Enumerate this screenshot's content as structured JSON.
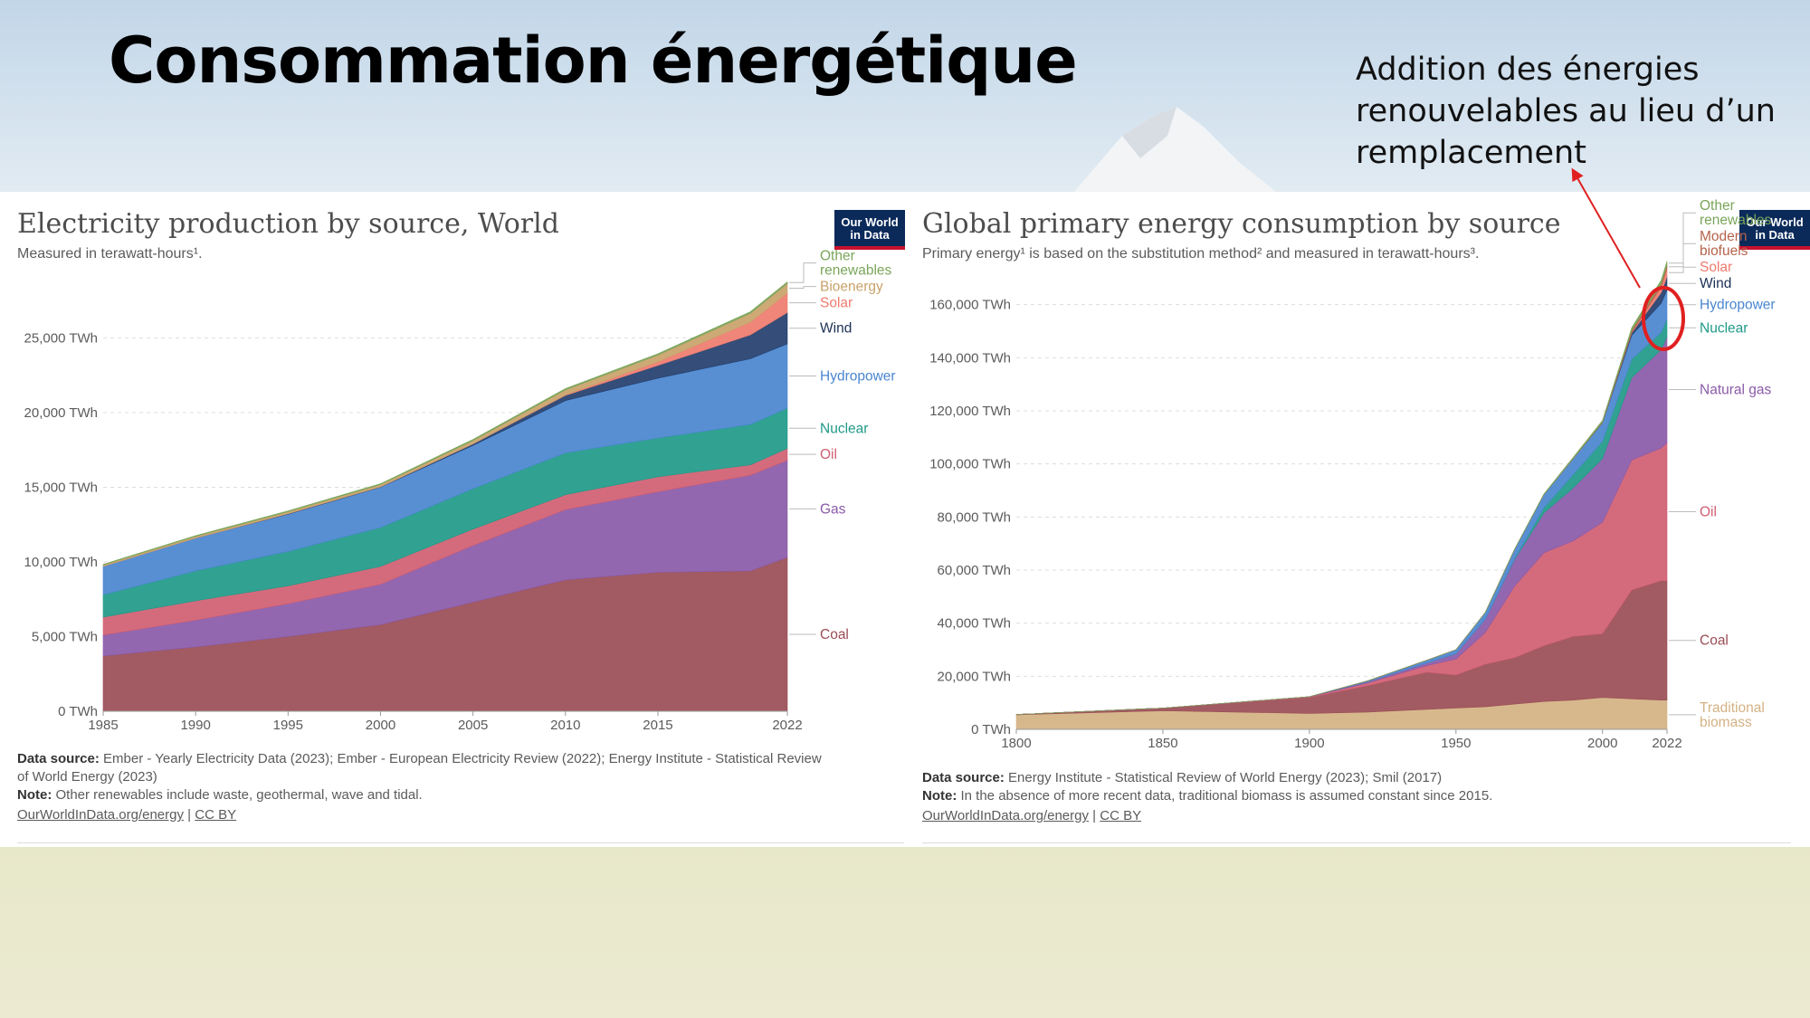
{
  "slide": {
    "title": "Consommation énergétique",
    "annotation": "Addition des énergies renouvelables au lieu d’un remplacement"
  },
  "logo": {
    "line1": "Our World",
    "line2": "in Data"
  },
  "chart_data": [
    {
      "type": "area",
      "stacked": true,
      "title": "Electricity production by source, World",
      "subtitle": "Measured in terawatt-hours¹.",
      "x": [
        1985,
        1990,
        1995,
        2000,
        2005,
        2010,
        2015,
        2020,
        2022
      ],
      "xticks": [
        "1985",
        "1990",
        "1995",
        "2000",
        "2005",
        "2010",
        "2015",
        "2022"
      ],
      "xtick_values": [
        1985,
        1990,
        1995,
        2000,
        2005,
        2010,
        2015,
        2022
      ],
      "ylim": [
        0,
        28600
      ],
      "yticks": [
        "0 TWh",
        "5,000 TWh",
        "10,000 TWh",
        "15,000 TWh",
        "20,000 TWh",
        "25,000 TWh"
      ],
      "ytick_values": [
        0,
        5000,
        10000,
        15000,
        20000,
        25000
      ],
      "series": [
        {
          "name": "Coal",
          "color": "#9a4d55",
          "values": [
            3700,
            4300,
            5000,
            5800,
            7300,
            8800,
            9300,
            9400,
            10300
          ]
        },
        {
          "name": "Gas",
          "color": "#8a5aa8",
          "values": [
            1400,
            1800,
            2200,
            2700,
            3800,
            4700,
            5400,
            6400,
            6500
          ]
        },
        {
          "name": "Oil",
          "color": "#d05e72",
          "values": [
            1200,
            1300,
            1200,
            1200,
            1100,
            1000,
            1000,
            700,
            800
          ]
        },
        {
          "name": "Nuclear",
          "color": "#1f9a88",
          "values": [
            1500,
            2000,
            2300,
            2600,
            2700,
            2800,
            2600,
            2700,
            2700
          ]
        },
        {
          "name": "Hydropower",
          "color": "#4a86cf",
          "values": [
            1900,
            2200,
            2500,
            2700,
            2900,
            3500,
            4000,
            4400,
            4300
          ]
        },
        {
          "name": "Wind",
          "color": "#233e6e",
          "values": [
            0,
            0,
            30,
            30,
            100,
            350,
            850,
            1600,
            2100
          ]
        },
        {
          "name": "Solar",
          "color": "#ef7b6e",
          "values": [
            0,
            0,
            0,
            0,
            0,
            30,
            250,
            850,
            1300
          ]
        },
        {
          "name": "Bioenergy",
          "color": "#c9a26a",
          "values": [
            100,
            110,
            130,
            150,
            230,
            350,
            450,
            600,
            650
          ]
        },
        {
          "name": "Other renewables",
          "color": "#7aa55a",
          "values": [
            40,
            50,
            60,
            60,
            70,
            80,
            90,
            100,
            100
          ]
        }
      ],
      "footer": {
        "source_label": "Data source:",
        "source_line1": "Ember - Yearly Electricity Data (2023); Ember - European Electricity Review (2022); Energy Institute - Statistical Review",
        "source_line2": "of World Energy (2023)",
        "note_label": "Note:",
        "note": "Other renewables include waste, geothermal, wave and tidal.",
        "link": "OurWorldInData.org/energy",
        "sep": "|",
        "license": "CC BY"
      }
    },
    {
      "type": "area",
      "stacked": true,
      "title": "Global primary energy consumption by source",
      "subtitle": "Primary energy¹ is based on the substitution method² and measured in terawatt-hours³.",
      "x": [
        1800,
        1850,
        1900,
        1920,
        1940,
        1950,
        1960,
        1970,
        1980,
        1990,
        2000,
        2010,
        2020,
        2022
      ],
      "xticks": [
        "1800",
        "1850",
        "1900",
        "1950",
        "2000",
        "2022"
      ],
      "xtick_values": [
        1800,
        1850,
        1900,
        1950,
        2000,
        2022
      ],
      "ylim": [
        0,
        180000
      ],
      "yticks": [
        "0 TWh",
        "20,000 TWh",
        "40,000 TWh",
        "60,000 TWh",
        "80,000 TWh",
        "100,000 TWh",
        "120,000 TWh",
        "140,000 TWh",
        "160,000 TWh"
      ],
      "ytick_values": [
        0,
        20000,
        40000,
        60000,
        80000,
        100000,
        120000,
        140000,
        160000
      ],
      "series": [
        {
          "name": "Traditional biomass",
          "color": "#d4b283",
          "values": [
            5500,
            7000,
            6000,
            6500,
            7500,
            8000,
            8500,
            9500,
            10500,
            11000,
            12000,
            11500,
            11000,
            11000
          ]
        },
        {
          "name": "Coal",
          "color": "#9a4d55",
          "values": [
            100,
            1000,
            6000,
            10000,
            14000,
            12500,
            16000,
            17500,
            21000,
            24000,
            24000,
            41000,
            45000,
            45000
          ]
        },
        {
          "name": "Oil",
          "color": "#d05e72",
          "values": [
            0,
            0,
            200,
            1000,
            2500,
            6000,
            12000,
            27000,
            35000,
            36000,
            42000,
            49000,
            50000,
            52000
          ]
        },
        {
          "name": "Natural gas",
          "color": "#8a5aa8",
          "values": [
            0,
            0,
            100,
            500,
            1000,
            2000,
            5000,
            10000,
            15000,
            20000,
            24000,
            31000,
            37000,
            40000
          ]
        },
        {
          "name": "Nuclear",
          "color": "#1f9a88",
          "values": [
            0,
            0,
            0,
            0,
            0,
            0,
            0,
            300,
            2000,
            5000,
            6500,
            7000,
            6500,
            6500
          ]
        },
        {
          "name": "Hydropower",
          "color": "#4a86cf",
          "values": [
            0,
            0,
            0,
            300,
            1000,
            1500,
            2500,
            3500,
            5000,
            6000,
            7000,
            9000,
            11000,
            11000
          ]
        },
        {
          "name": "Wind",
          "color": "#233e6e",
          "values": [
            0,
            0,
            0,
            0,
            0,
            0,
            0,
            0,
            0,
            0,
            100,
            900,
            4000,
            5000
          ]
        },
        {
          "name": "Solar",
          "color": "#ef7b6e",
          "values": [
            0,
            0,
            0,
            0,
            0,
            0,
            0,
            0,
            0,
            0,
            0,
            200,
            2200,
            3200
          ]
        },
        {
          "name": "Modern biofuels",
          "color": "#b5634a",
          "values": [
            0,
            0,
            0,
            0,
            0,
            0,
            0,
            0,
            0,
            100,
            200,
            800,
            1100,
            1200
          ]
        },
        {
          "name": "Other renewables",
          "color": "#7aa55a",
          "values": [
            0,
            0,
            0,
            0,
            0,
            0,
            50,
            100,
            200,
            400,
            600,
            1000,
            1400,
            1500
          ]
        }
      ],
      "footer": {
        "source_label": "Data source:",
        "source": "Energy Institute - Statistical Review of World Energy (2023); Smil (2017)",
        "note_label": "Note:",
        "note": "In the absence of more recent data, traditional biomass is assumed constant since 2015.",
        "link": "OurWorldInData.org/energy",
        "sep": "|",
        "license": "CC BY"
      }
    }
  ]
}
